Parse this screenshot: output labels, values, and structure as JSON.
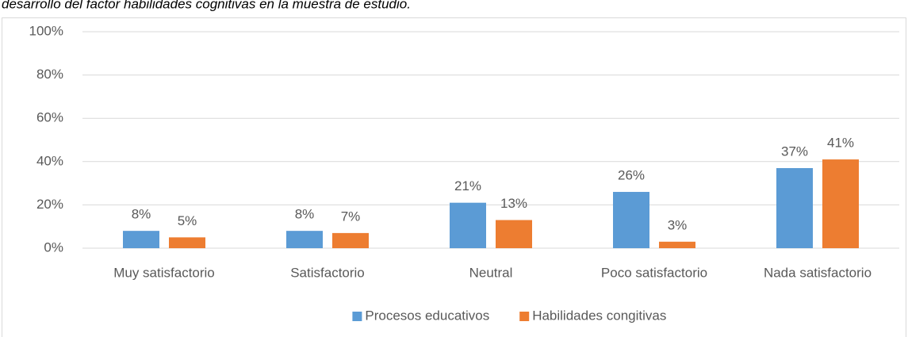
{
  "chart_data": {
    "type": "bar",
    "title": "desarrollo del factor habilidades cognitivas en la muestra de estudio.",
    "categories": [
      "Muy satisfactorio",
      "Satisfactorio",
      "Neutral",
      "Poco satisfactorio",
      "Nada satisfactorio"
    ],
    "series": [
      {
        "name": "Procesos educativos",
        "color": "#5b9bd5",
        "values": [
          8,
          8,
          21,
          26,
          37
        ],
        "value_labels": [
          "8%",
          "8%",
          "21%",
          "26%",
          "37%"
        ]
      },
      {
        "name": "Habilidades congitivas",
        "color": "#ed7d31",
        "values": [
          5,
          7,
          13,
          3,
          41
        ],
        "value_labels": [
          "5%",
          "7%",
          "13%",
          "3%",
          "41%"
        ]
      }
    ],
    "ylim": [
      0,
      100
    ],
    "yticks": [
      {
        "value": 0,
        "label": "0%"
      },
      {
        "value": 20,
        "label": "20%"
      },
      {
        "value": 40,
        "label": "40%"
      },
      {
        "value": 60,
        "label": "60%"
      },
      {
        "value": 80,
        "label": "80%"
      },
      {
        "value": 100,
        "label": "100%"
      }
    ],
    "grid": true,
    "legend": "bottom"
  }
}
